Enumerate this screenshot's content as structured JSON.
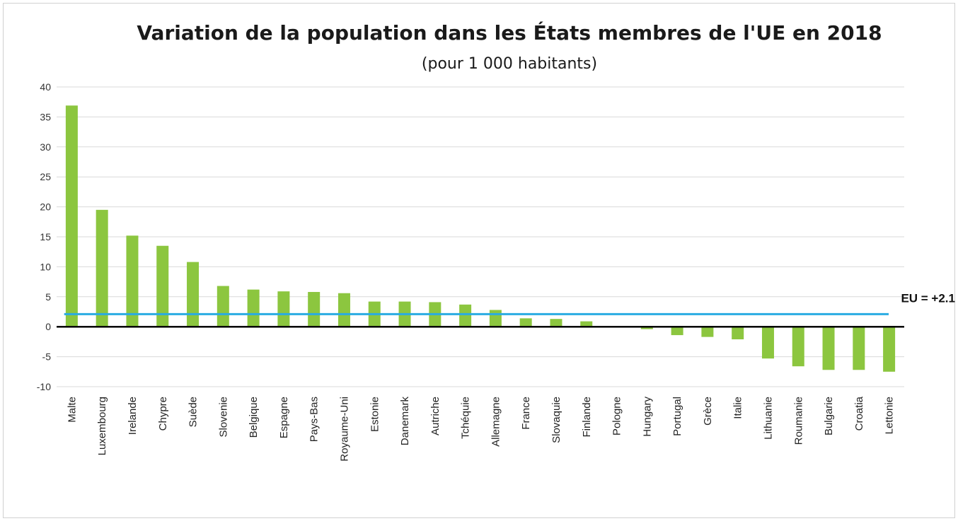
{
  "chart_data": {
    "type": "bar",
    "title": "Variation de la population dans les États membres de l'UE en 2018",
    "subtitle": "(pour 1 000 habitants)",
    "categories": [
      "Malte",
      "Luxembourg",
      "Irelande",
      "Chypre",
      "Suède",
      "Slovenie",
      "Belgique",
      "Espagne",
      "Pays-Bas",
      "Royaume-Uni",
      "Estonie",
      "Danemark",
      "Autriche",
      "Tchéquie",
      "Allemagne",
      "France",
      "Slovaquie",
      "Finlande",
      "Pologne",
      "Hungary",
      "Portugal",
      "Grèce",
      "Italie",
      "Lithuanie",
      "Roumanie",
      "Bulgarie",
      "Croatia",
      "Lettonie"
    ],
    "values": [
      36.9,
      19.5,
      15.2,
      13.5,
      10.8,
      6.8,
      6.2,
      5.9,
      5.8,
      5.6,
      4.2,
      4.2,
      4.1,
      3.7,
      2.8,
      1.4,
      1.3,
      0.9,
      0.0,
      -0.4,
      -1.4,
      -1.7,
      -2.1,
      -5.3,
      -6.6,
      -7.2,
      -7.2,
      -7.5
    ],
    "ylim": [
      -10,
      40
    ],
    "yticks": [
      -10,
      -5,
      0,
      5,
      10,
      15,
      20,
      25,
      30,
      35,
      40
    ],
    "grid": true,
    "reference_line": {
      "value": 2.1,
      "label": "EU = +2.1"
    },
    "colors": {
      "bar": "#8cc63f",
      "reference": "#29abe2",
      "zero_line": "#000000",
      "grid": "#d9d9d9"
    }
  }
}
